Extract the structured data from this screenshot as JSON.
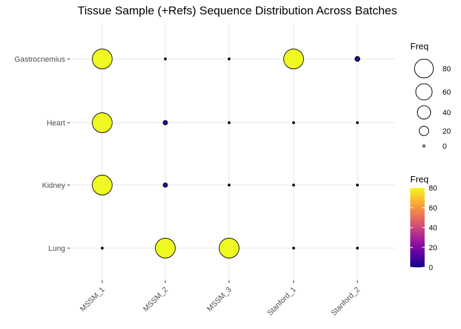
{
  "chart_data": {
    "type": "scatter",
    "title": "Tissue Sample (+Refs) Sequence Distribution Across Batches",
    "xlabel": "",
    "ylabel": "",
    "categories_x": [
      "MSSM_1",
      "MSSM_2",
      "MSSM_3",
      "Stanford_1",
      "Stanford_2"
    ],
    "categories_y": [
      "Gastrocnemius",
      "Heart",
      "Kidney",
      "Lung"
    ],
    "points": [
      {
        "x": "MSSM_1",
        "y": "Gastrocnemius",
        "freq": 80
      },
      {
        "x": "MSSM_2",
        "y": "Gastrocnemius",
        "freq": 1
      },
      {
        "x": "MSSM_3",
        "y": "Gastrocnemius",
        "freq": 1
      },
      {
        "x": "Stanford_1",
        "y": "Gastrocnemius",
        "freq": 80
      },
      {
        "x": "Stanford_2",
        "y": "Gastrocnemius",
        "freq": 5
      },
      {
        "x": "MSSM_1",
        "y": "Heart",
        "freq": 80
      },
      {
        "x": "MSSM_2",
        "y": "Heart",
        "freq": 4
      },
      {
        "x": "MSSM_3",
        "y": "Heart",
        "freq": 1
      },
      {
        "x": "Stanford_1",
        "y": "Heart",
        "freq": 1
      },
      {
        "x": "Stanford_2",
        "y": "Heart",
        "freq": 1
      },
      {
        "x": "MSSM_1",
        "y": "Kidney",
        "freq": 80
      },
      {
        "x": "MSSM_2",
        "y": "Kidney",
        "freq": 4
      },
      {
        "x": "MSSM_3",
        "y": "Kidney",
        "freq": 1
      },
      {
        "x": "Stanford_1",
        "y": "Kidney",
        "freq": 1
      },
      {
        "x": "Stanford_2",
        "y": "Kidney",
        "freq": 1
      },
      {
        "x": "MSSM_1",
        "y": "Lung",
        "freq": 1
      },
      {
        "x": "MSSM_2",
        "y": "Lung",
        "freq": 80
      },
      {
        "x": "MSSM_3",
        "y": "Lung",
        "freq": 80
      },
      {
        "x": "Stanford_1",
        "y": "Lung",
        "freq": 1
      },
      {
        "x": "Stanford_2",
        "y": "Lung",
        "freq": 1
      }
    ],
    "size_legend": {
      "title": "Freq",
      "breaks": [
        80,
        60,
        40,
        20,
        0
      ]
    },
    "color_legend": {
      "title": "Freq",
      "breaks": [
        80,
        60,
        40,
        20,
        0
      ],
      "range": [
        0,
        80
      ]
    },
    "color_scale": [
      "#0d0887",
      "#5c01a6",
      "#9c179e",
      "#cc4778",
      "#ed7953",
      "#fdb42f",
      "#f0f921"
    ],
    "grid": true
  }
}
